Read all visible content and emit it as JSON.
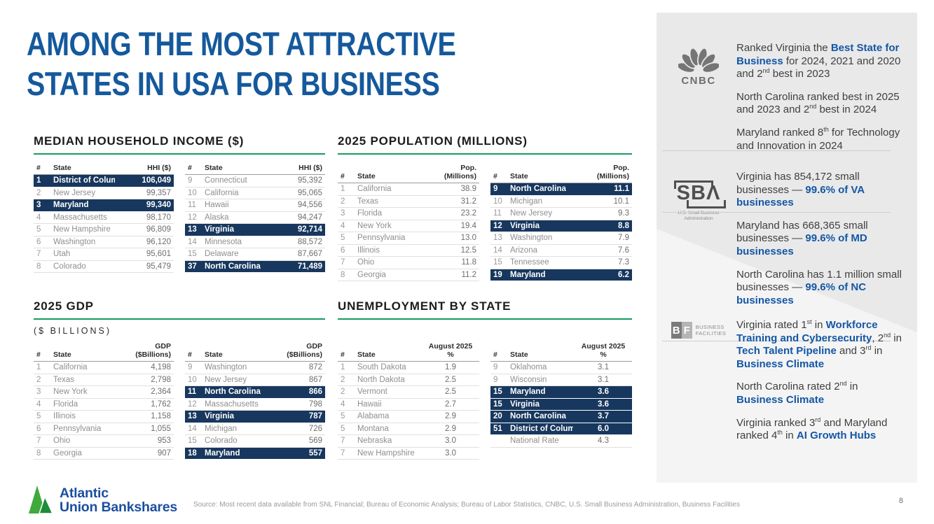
{
  "title": {
    "line1": "AMONG THE MOST ATTRACTIVE",
    "line2": "STATES IN USA FOR BUSINESS"
  },
  "colors": {
    "title_blue": "#15599c",
    "highlight_navy": "#17375e",
    "accent_green": "#169c5f",
    "bold_blue": "#1457a5",
    "logo_green": "#3faa3b",
    "logo_blue": "#1b4fa0"
  },
  "sections": {
    "hhi": {
      "title": "MEDIAN HOUSEHOLD INCOME ($)",
      "col_rank": "#",
      "col_state": "State",
      "col_value": "HHI ($)",
      "left": [
        {
          "r": "1",
          "s": "District of Columbia",
          "v": "106,049",
          "hl": true
        },
        {
          "r": "2",
          "s": "New Jersey",
          "v": "99,357"
        },
        {
          "r": "3",
          "s": "Maryland",
          "v": "99,340",
          "hl": true
        },
        {
          "r": "4",
          "s": "Massachusetts",
          "v": "98,170"
        },
        {
          "r": "5",
          "s": "New Hampshire",
          "v": "96,809"
        },
        {
          "r": "6",
          "s": "Washington",
          "v": "96,120"
        },
        {
          "r": "7",
          "s": "Utah",
          "v": "95,601"
        },
        {
          "r": "8",
          "s": "Colorado",
          "v": "95,479"
        }
      ],
      "right": [
        {
          "r": "9",
          "s": "Connecticut",
          "v": "95,392"
        },
        {
          "r": "10",
          "s": "California",
          "v": "95,065"
        },
        {
          "r": "11",
          "s": "Hawaii",
          "v": "94,556"
        },
        {
          "r": "12",
          "s": "Alaska",
          "v": "94,247"
        },
        {
          "r": "13",
          "s": "Virginia",
          "v": "92,714",
          "hl": true
        },
        {
          "r": "14",
          "s": "Minnesota",
          "v": "88,572"
        },
        {
          "r": "15",
          "s": "Delaware",
          "v": "87,667"
        },
        {
          "r": "37",
          "s": "North Carolina",
          "v": "71,489",
          "hl": true
        }
      ]
    },
    "population": {
      "title": "2025 POPULATION (MILLIONS)",
      "col_rank": "#",
      "col_state": "State",
      "col_value": "Pop.\n(Millions)",
      "left": [
        {
          "r": "1",
          "s": "California",
          "v": "38.9"
        },
        {
          "r": "2",
          "s": "Texas",
          "v": "31.2"
        },
        {
          "r": "3",
          "s": "Florida",
          "v": "23.2"
        },
        {
          "r": "4",
          "s": "New York",
          "v": "19.4"
        },
        {
          "r": "5",
          "s": "Pennsylvania",
          "v": "13.0"
        },
        {
          "r": "6",
          "s": "Illinois",
          "v": "12.5"
        },
        {
          "r": "7",
          "s": "Ohio",
          "v": "11.8"
        },
        {
          "r": "8",
          "s": "Georgia",
          "v": "11.2"
        }
      ],
      "right": [
        {
          "r": "9",
          "s": "North Carolina",
          "v": "11.1",
          "hl": true
        },
        {
          "r": "10",
          "s": "Michigan",
          "v": "10.1"
        },
        {
          "r": "11",
          "s": "New Jersey",
          "v": "9.3"
        },
        {
          "r": "12",
          "s": "Virginia",
          "v": "8.8",
          "hl": true
        },
        {
          "r": "13",
          "s": "Washington",
          "v": "7.9"
        },
        {
          "r": "14",
          "s": "Arizona",
          "v": "7.6"
        },
        {
          "r": "15",
          "s": "Tennessee",
          "v": "7.3"
        },
        {
          "r": "19",
          "s": "Maryland",
          "v": "6.2",
          "hl": true
        }
      ]
    },
    "gdp": {
      "title": "2025 GDP",
      "subtitle": "($ BILLIONS)",
      "col_rank": "#",
      "col_state": "State",
      "col_value": "GDP\n($Billions)",
      "left": [
        {
          "r": "1",
          "s": "California",
          "v": "4,198"
        },
        {
          "r": "2",
          "s": "Texas",
          "v": "2,798"
        },
        {
          "r": "3",
          "s": "New York",
          "v": "2,364"
        },
        {
          "r": "4",
          "s": "Florida",
          "v": "1,762"
        },
        {
          "r": "5",
          "s": "Illinois",
          "v": "1,158"
        },
        {
          "r": "6",
          "s": "Pennsylvania",
          "v": "1,055"
        },
        {
          "r": "7",
          "s": "Ohio",
          "v": "953"
        },
        {
          "r": "8",
          "s": "Georgia",
          "v": "907"
        }
      ],
      "right": [
        {
          "r": "9",
          "s": "Washington",
          "v": "872"
        },
        {
          "r": "10",
          "s": "New Jersey",
          "v": "867"
        },
        {
          "r": "11",
          "s": "North Carolina",
          "v": "866",
          "hl": true
        },
        {
          "r": "12",
          "s": "Massachusetts",
          "v": "798"
        },
        {
          "r": "13",
          "s": "Virginia",
          "v": "787",
          "hl": true
        },
        {
          "r": "14",
          "s": "Michigan",
          "v": "726"
        },
        {
          "r": "15",
          "s": "Colorado",
          "v": "569"
        },
        {
          "r": "18",
          "s": "Maryland",
          "v": "557",
          "hl": true
        }
      ]
    },
    "unemployment": {
      "title": "UNEMPLOYMENT BY STATE",
      "col_rank": "#",
      "col_state": "State",
      "col_value": "August 2025\n%",
      "left": [
        {
          "r": "1",
          "s": "South Dakota",
          "v": "1.9"
        },
        {
          "r": "2",
          "s": "North Dakota",
          "v": "2.5"
        },
        {
          "r": "2",
          "s": "Vermont",
          "v": "2.5"
        },
        {
          "r": "4",
          "s": "Hawaii",
          "v": "2.7"
        },
        {
          "r": "5",
          "s": "Alabama",
          "v": "2.9"
        },
        {
          "r": "5",
          "s": "Montana",
          "v": "2.9"
        },
        {
          "r": "7",
          "s": "Nebraska",
          "v": "3.0"
        },
        {
          "r": "7",
          "s": "New Hampshire",
          "v": "3.0"
        }
      ],
      "right": [
        {
          "r": "9",
          "s": "Oklahoma",
          "v": "3.1"
        },
        {
          "r": "9",
          "s": "Wisconsin",
          "v": "3.1"
        },
        {
          "r": "15",
          "s": "Maryland",
          "v": "3.6",
          "hl": true
        },
        {
          "r": "15",
          "s": "Virginia",
          "v": "3.6",
          "hl": true
        },
        {
          "r": "20",
          "s": "North Carolina",
          "v": "3.7",
          "hl": true
        },
        {
          "r": "51",
          "s": "District of Columbia",
          "v": "6.0",
          "hl": true
        },
        {
          "r": "",
          "s": "National Rate",
          "v": "4.3"
        }
      ]
    }
  },
  "sidebar": {
    "cnbc": {
      "logo_text": "CNBC",
      "paragraphs": [
        [
          {
            "t": "Ranked Virginia the "
          },
          {
            "t": "Best State for Business",
            "b": true
          },
          {
            "t": " for 2024, 2021 and 2020 and 2"
          },
          {
            "t": "nd",
            "sup": true
          },
          {
            "t": " best in 2023"
          }
        ],
        [
          {
            "t": "North Carolina ranked best in 2025 and 2023 and 2"
          },
          {
            "t": "nd",
            "sup": true
          },
          {
            "t": " best in 2024"
          }
        ],
        [
          {
            "t": "Maryland ranked 8"
          },
          {
            "t": "th",
            "sup": true
          },
          {
            "t": " for Technology and Innovation in 2024"
          }
        ]
      ]
    },
    "sba": {
      "logo_text": "SBΛ",
      "logo_sub": "U.S. Small Business Administration",
      "paragraphs": [
        [
          {
            "t": "Virginia has 854,172 small businesses — "
          },
          {
            "t": "99.6% of VA businesses",
            "b": true
          }
        ],
        [
          {
            "t": "Maryland has 668,365 small businesses — "
          },
          {
            "t": "99.6% of MD businesses",
            "b": true
          }
        ],
        [
          {
            "t": "North Carolina has 1.1 million small businesses — "
          },
          {
            "t": "99.6% of NC businesses",
            "b": true
          }
        ]
      ]
    },
    "bf": {
      "logo_b": "B",
      "logo_f": "F",
      "logo_label": "BUSINESS\nFACILITIES",
      "paragraphs": [
        [
          {
            "t": "Virginia rated 1"
          },
          {
            "t": "st",
            "sup": true
          },
          {
            "t": " in "
          },
          {
            "t": "Workforce Training and Cybersecurity",
            "b": true
          },
          {
            "t": ", 2"
          },
          {
            "t": "nd",
            "sup": true
          },
          {
            "t": " in "
          },
          {
            "t": "Tech Talent Pipeline",
            "b": true
          },
          {
            "t": " and 3"
          },
          {
            "t": "rd",
            "sup": true
          },
          {
            "t": " in "
          },
          {
            "t": "Business Climate",
            "b": true
          }
        ],
        [
          {
            "t": "North Carolina rated 2"
          },
          {
            "t": "nd",
            "sup": true
          },
          {
            "t": " in "
          },
          {
            "t": "Business Climate",
            "b": true
          }
        ],
        [
          {
            "t": "Virginia ranked 3"
          },
          {
            "t": "rd",
            "sup": true
          },
          {
            "t": " and Maryland ranked 4"
          },
          {
            "t": "th",
            "sup": true
          },
          {
            "t": " in "
          },
          {
            "t": "AI Growth Hubs",
            "b": true
          }
        ]
      ]
    }
  },
  "footer": {
    "logo_line1": "Atlantic",
    "logo_line2": "Union Bankshares",
    "source": "Source: Most recent data available from SNL Financial; Bureau of Economic Analysis; Bureau of Labor Statistics, CNBC, U.S. Small Business Administration, Business Facilities",
    "page_number": "8"
  }
}
